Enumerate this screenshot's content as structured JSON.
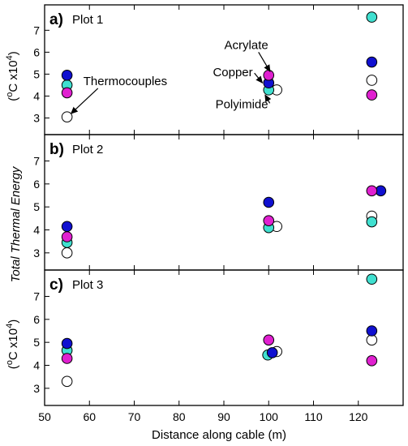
{
  "chart_data": {
    "type": "scatter",
    "xlabel": "Distance along cable (m)",
    "shared_ylabel": "Total Thermal Energy",
    "ylabel_units": [
      "(",
      "o",
      "C x10",
      "4",
      ")"
    ],
    "xlim": [
      50,
      130
    ],
    "xticks": [
      50,
      60,
      70,
      80,
      90,
      100,
      110,
      120
    ],
    "ylim": [
      2.5,
      7.9
    ],
    "yticks": [
      3,
      4,
      5,
      6,
      7
    ],
    "series_colors": {
      "Thermocouples": "#ffffff",
      "Polyimide": "#40e0d0",
      "Copper": "#1010d0",
      "Acrylate": "#e020d0"
    },
    "panels": [
      {
        "letter": "a)",
        "title": "Plot 1",
        "show_units_label": true,
        "points": [
          {
            "series": "Thermocouples",
            "x": 55,
            "y": 3.05
          },
          {
            "series": "Polyimide",
            "x": 55,
            "y": 4.5
          },
          {
            "series": "Copper",
            "x": 55,
            "y": 4.95
          },
          {
            "series": "Acrylate",
            "x": 55,
            "y": 4.15
          },
          {
            "series": "Thermocouples",
            "x": 101.8,
            "y": 4.28
          },
          {
            "series": "Polyimide",
            "x": 100,
            "y": 4.28
          },
          {
            "series": "Copper",
            "x": 100,
            "y": 4.6
          },
          {
            "series": "Acrylate",
            "x": 100,
            "y": 4.95
          },
          {
            "series": "Thermocouples",
            "x": 123,
            "y": 4.72
          },
          {
            "series": "Polyimide",
            "x": 123,
            "y": 7.6
          },
          {
            "series": "Copper",
            "x": 123,
            "y": 5.55
          },
          {
            "series": "Acrylate",
            "x": 123,
            "y": 4.05
          }
        ],
        "annotations": [
          {
            "text": "Thermocouples",
            "x": 68,
            "y": 4.5,
            "arrow_to": [
              55.9,
              3.2
            ]
          },
          {
            "text": "Copper",
            "x": 92,
            "y": 4.9,
            "arrow_to": [
              98.6,
              4.6
            ]
          },
          {
            "text": "Acrylate",
            "x": 95,
            "y": 6.15,
            "arrow_to": [
              100.3,
              5.12
            ]
          },
          {
            "text": "Polyimide",
            "x": 94,
            "y": 3.45,
            "arrow_to": [
              99.2,
              4.05
            ]
          }
        ]
      },
      {
        "letter": "b)",
        "title": "Plot 2",
        "show_units_label": false,
        "points": [
          {
            "series": "Thermocouples",
            "x": 55,
            "y": 3.0
          },
          {
            "series": "Polyimide",
            "x": 55,
            "y": 3.45
          },
          {
            "series": "Copper",
            "x": 55,
            "y": 4.15
          },
          {
            "series": "Acrylate",
            "x": 55,
            "y": 3.7
          },
          {
            "series": "Thermocouples",
            "x": 101.8,
            "y": 4.15
          },
          {
            "series": "Polyimide",
            "x": 100,
            "y": 4.1
          },
          {
            "series": "Copper",
            "x": 100,
            "y": 5.2
          },
          {
            "series": "Acrylate",
            "x": 100,
            "y": 4.4
          },
          {
            "series": "Thermocouples",
            "x": 123,
            "y": 4.6
          },
          {
            "series": "Polyimide",
            "x": 123,
            "y": 4.35
          },
          {
            "series": "Copper",
            "x": 125,
            "y": 5.7
          },
          {
            "series": "Acrylate",
            "x": 123,
            "y": 5.7
          }
        ],
        "annotations": []
      },
      {
        "letter": "c)",
        "title": "Plot 3",
        "show_units_label": true,
        "points": [
          {
            "series": "Thermocouples",
            "x": 55,
            "y": 3.3
          },
          {
            "series": "Polyimide",
            "x": 55,
            "y": 4.65
          },
          {
            "series": "Copper",
            "x": 55,
            "y": 4.95
          },
          {
            "series": "Acrylate",
            "x": 55,
            "y": 4.3
          },
          {
            "series": "Thermocouples",
            "x": 101.8,
            "y": 4.6
          },
          {
            "series": "Polyimide",
            "x": 99.8,
            "y": 4.45
          },
          {
            "series": "Copper",
            "x": 100.8,
            "y": 4.55
          },
          {
            "series": "Acrylate",
            "x": 100,
            "y": 5.1
          },
          {
            "series": "Thermocouples",
            "x": 123,
            "y": 5.1
          },
          {
            "series": "Polyimide",
            "x": 123,
            "y": 7.75
          },
          {
            "series": "Copper",
            "x": 123,
            "y": 5.5
          },
          {
            "series": "Acrylate",
            "x": 123,
            "y": 4.2
          }
        ],
        "annotations": []
      }
    ]
  }
}
